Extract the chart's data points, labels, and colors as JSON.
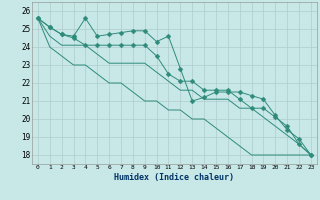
{
  "xlabel": "Humidex (Indice chaleur)",
  "ylabel": "",
  "bg_color": "#c8e8e8",
  "grid_color": "#b0cccc",
  "line_color": "#2e8b7a",
  "xlim": [
    -0.5,
    23.5
  ],
  "ylim": [
    17.5,
    26.5
  ],
  "xticks": [
    0,
    1,
    2,
    3,
    4,
    5,
    6,
    7,
    8,
    9,
    10,
    11,
    12,
    13,
    14,
    15,
    16,
    17,
    18,
    19,
    20,
    21,
    22,
    23
  ],
  "yticks": [
    18,
    19,
    20,
    21,
    22,
    23,
    24,
    25,
    26
  ],
  "series": [
    [
      25.6,
      25.1,
      24.7,
      24.6,
      25.6,
      24.6,
      24.7,
      24.8,
      24.9,
      24.9,
      24.3,
      24.6,
      22.8,
      21.0,
      21.2,
      21.5,
      21.5,
      21.5,
      21.3,
      21.1,
      20.2,
      19.4,
      18.9,
      18.0
    ],
    [
      25.6,
      25.1,
      24.7,
      24.5,
      24.1,
      24.1,
      24.1,
      24.1,
      24.1,
      24.1,
      23.5,
      22.5,
      22.1,
      22.1,
      21.6,
      21.6,
      21.6,
      21.1,
      20.6,
      20.6,
      20.1,
      19.6,
      18.6,
      18.0
    ],
    [
      25.6,
      24.6,
      24.1,
      24.1,
      24.1,
      23.6,
      23.1,
      23.1,
      23.1,
      23.1,
      22.6,
      22.1,
      21.6,
      21.6,
      21.1,
      21.1,
      21.1,
      20.6,
      20.6,
      20.1,
      19.6,
      19.1,
      18.6,
      18.0
    ],
    [
      25.6,
      24.0,
      23.5,
      23.0,
      23.0,
      22.5,
      22.0,
      22.0,
      21.5,
      21.0,
      21.0,
      20.5,
      20.5,
      20.0,
      20.0,
      19.5,
      19.0,
      18.5,
      18.0,
      18.0,
      18.0,
      18.0,
      18.0,
      18.0
    ]
  ],
  "marker_series": [
    0,
    1
  ],
  "marker": "D",
  "markersize": 2.5
}
